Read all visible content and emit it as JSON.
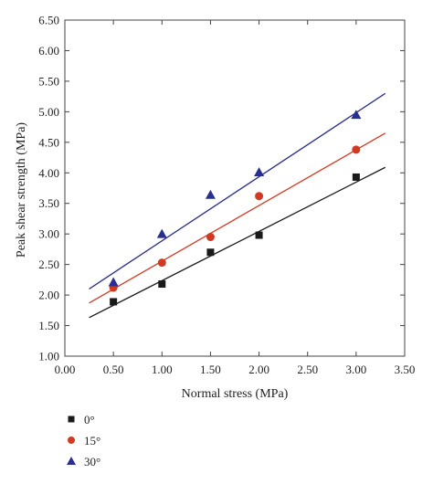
{
  "chart_data": {
    "type": "scatter",
    "xlabel": "Normal stress (MPa)",
    "ylabel": "Peak shear strength (MPa)",
    "xlim": [
      0.0,
      3.5
    ],
    "ylim": [
      1.0,
      6.5
    ],
    "x_ticks": [
      "0.00",
      "0.50",
      "1.00",
      "1.50",
      "2.00",
      "2.50",
      "3.00",
      "3.50"
    ],
    "y_ticks": [
      "1.00",
      "1.50",
      "2.00",
      "2.50",
      "3.00",
      "3.50",
      "4.00",
      "4.50",
      "5.00",
      "5.50",
      "6.00",
      "6.50"
    ],
    "grid": false,
    "legend_position": "bottom-left",
    "series": [
      {
        "name": "0°",
        "marker": "square",
        "color": "#1a1a1a",
        "x": [
          0.5,
          1.0,
          1.5,
          2.0,
          3.0
        ],
        "y": [
          1.89,
          2.18,
          2.7,
          2.98,
          3.93
        ],
        "fit_line": {
          "x": [
            0.25,
            3.3
          ],
          "y": [
            1.63,
            4.09
          ]
        }
      },
      {
        "name": "15°",
        "marker": "circle",
        "color": "#d13a22",
        "x": [
          0.5,
          1.0,
          1.5,
          2.0,
          3.0
        ],
        "y": [
          2.12,
          2.53,
          2.95,
          3.62,
          4.38
        ],
        "fit_line": {
          "x": [
            0.25,
            3.3
          ],
          "y": [
            1.87,
            4.65
          ]
        }
      },
      {
        "name": "30°",
        "marker": "triangle",
        "color": "#2a2f8f",
        "x": [
          0.5,
          1.0,
          1.5,
          2.0,
          3.0
        ],
        "y": [
          2.21,
          3.0,
          3.64,
          4.01,
          4.95
        ],
        "fit_line": {
          "x": [
            0.25,
            3.3
          ],
          "y": [
            2.1,
            5.3
          ]
        }
      }
    ]
  }
}
